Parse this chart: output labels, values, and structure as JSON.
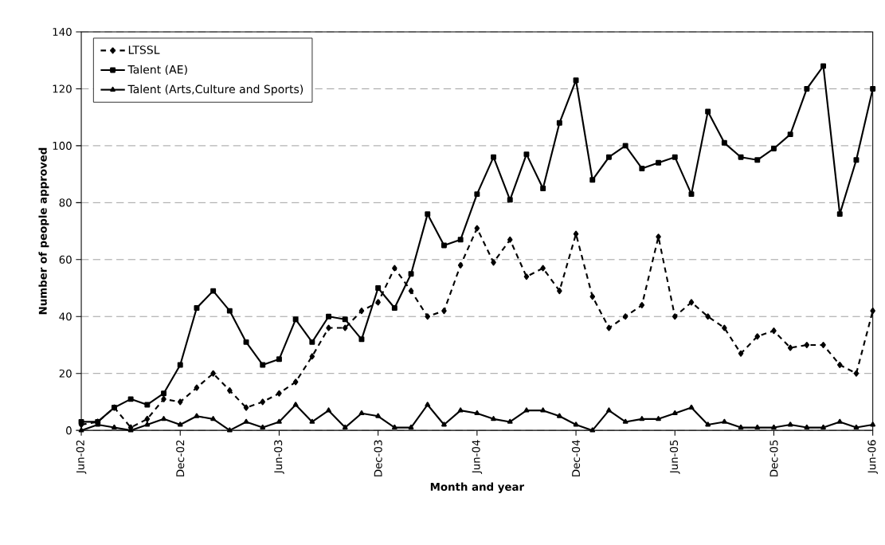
{
  "chart_data": {
    "type": "line",
    "xlabel": "Month and year",
    "ylabel": "Number of people approved",
    "categories": [
      "Jun-02",
      null,
      null,
      null,
      null,
      null,
      "Dec-02",
      null,
      null,
      null,
      null,
      null,
      "Jun-03",
      null,
      null,
      null,
      null,
      null,
      "Dec-03",
      null,
      null,
      null,
      null,
      null,
      "Jun-04",
      null,
      null,
      null,
      null,
      null,
      "Dec-04",
      null,
      null,
      null,
      null,
      null,
      "Jun-05",
      null,
      null,
      null,
      null,
      null,
      "Dec-05",
      null,
      null,
      null,
      null,
      null,
      "Jun-06"
    ],
    "series": [
      {
        "name": "LTSSL",
        "color": "#000000",
        "marker": "diamond",
        "line_style": "dashed",
        "values": [
          2,
          3,
          8,
          1,
          4,
          11,
          10,
          15,
          20,
          14,
          8,
          10,
          13,
          17,
          26,
          36,
          36,
          42,
          45,
          57,
          49,
          40,
          42,
          58,
          71,
          59,
          67,
          54,
          57,
          49,
          69,
          47,
          36,
          40,
          44,
          68,
          40,
          45,
          40,
          36,
          27,
          33,
          35,
          29,
          30,
          30,
          23,
          20,
          42
        ]
      },
      {
        "name": "Talent (AE)",
        "color": "#000000",
        "marker": "square",
        "line_style": "solid",
        "values": [
          3,
          3,
          8,
          11,
          9,
          13,
          23,
          43,
          49,
          42,
          31,
          23,
          25,
          39,
          31,
          40,
          39,
          32,
          50,
          43,
          55,
          76,
          65,
          67,
          83,
          96,
          81,
          97,
          85,
          108,
          123,
          88,
          96,
          100,
          92,
          94,
          96,
          83,
          112,
          101,
          96,
          95,
          99,
          104,
          120,
          128,
          76,
          95,
          120
        ]
      },
      {
        "name": "Talent (Arts,Culture and Sports)",
        "color": "#000000",
        "marker": "triangle",
        "line_style": "solid",
        "values": [
          0,
          2,
          1,
          0,
          2,
          4,
          2,
          5,
          4,
          0,
          3,
          1,
          3,
          9,
          3,
          7,
          1,
          6,
          5,
          1,
          1,
          9,
          2,
          7,
          6,
          4,
          3,
          7,
          7,
          5,
          2,
          0,
          7,
          3,
          4,
          4,
          6,
          8,
          2,
          3,
          1,
          1,
          1,
          2,
          1,
          1,
          3,
          1,
          2
        ]
      }
    ],
    "ylim": [
      0,
      140
    ],
    "yticks": [
      0,
      20,
      40,
      60,
      80,
      100,
      120,
      140
    ],
    "grid": "y",
    "legend": "top left"
  }
}
